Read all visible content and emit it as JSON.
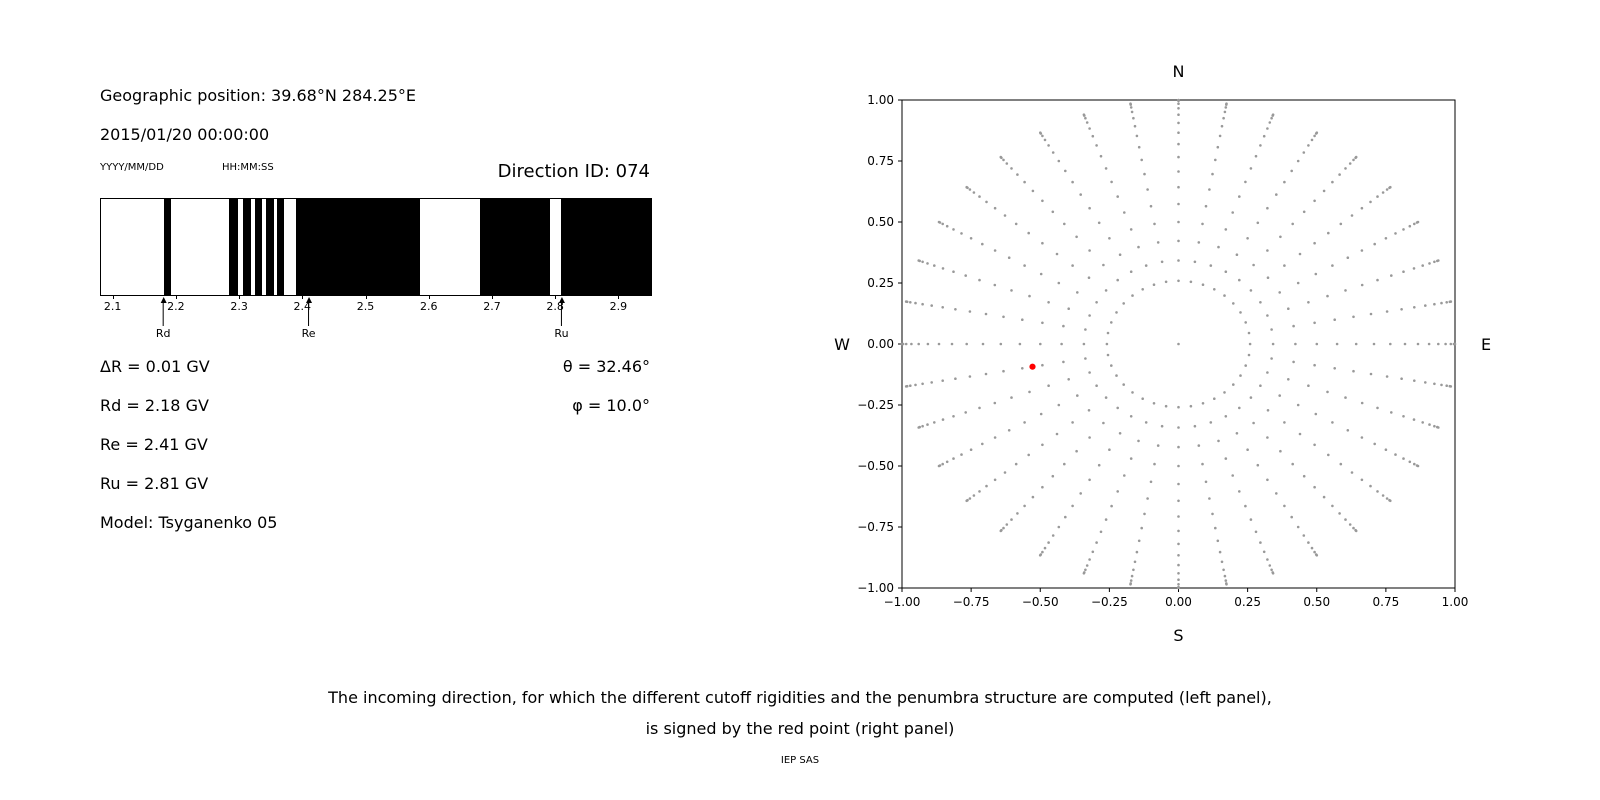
{
  "header": {
    "geo_position": "Geographic position: 39.68°N 284.25°E",
    "datetime": "2015/01/20 00:00:00",
    "date_format_label": "YYYY/MM/DD",
    "time_format_label": "HH:MM:SS",
    "direction_id": "Direction ID: 074"
  },
  "parameters": {
    "delta_r": "ΔR = 0.01 GV",
    "theta": "θ = 32.46°",
    "rd": "Rd = 2.18 GV",
    "phi": "φ = 10.0°",
    "re": "Re = 2.41 GV",
    "ru": "Ru = 2.81 GV",
    "model": "Model: Tsyganenko 05"
  },
  "caption": {
    "line1": "The incoming direction, for which the different cutoff rigidities and the penumbra structure are computed (left panel),",
    "line2": "is signed by the red point (right panel)",
    "credit": "IEP SAS"
  },
  "chart_data": [
    {
      "id": "penumbra-structure",
      "type": "bar",
      "description": "Penumbra structure barcode: black bands are allowed rigidity intervals, white gaps are forbidden",
      "xlim": [
        2.08,
        2.95
      ],
      "xticks": [
        2.1,
        2.2,
        2.3,
        2.4,
        2.5,
        2.6,
        2.7,
        2.8,
        2.9
      ],
      "tick_labels": [
        "2.1",
        "2.2",
        "2.3",
        "2.4",
        "2.5",
        "2.6",
        "2.7",
        "2.8",
        "2.9"
      ],
      "allowed_color": "#000000",
      "forbidden_color": "#ffffff",
      "allowed_bands_gv": [
        [
          2.18,
          2.19
        ],
        [
          2.282,
          2.297
        ],
        [
          2.304,
          2.317
        ],
        [
          2.323,
          2.335
        ],
        [
          2.341,
          2.353
        ],
        [
          2.359,
          2.369
        ],
        [
          2.388,
          2.585
        ],
        [
          2.68,
          2.79
        ],
        [
          2.807,
          2.95
        ]
      ],
      "markers": [
        {
          "label": "Rd",
          "value_gv": 2.18
        },
        {
          "label": "Re",
          "value_gv": 2.41
        },
        {
          "label": "Ru",
          "value_gv": 2.81
        }
      ]
    },
    {
      "id": "direction-map",
      "type": "scatter",
      "description": "Sky map of incoming directions; grid of gray dots at azimuth/zenith steps, red dot marks the computed direction",
      "xlim": [
        -1.0,
        1.0
      ],
      "ylim": [
        -1.0,
        1.0
      ],
      "xticks": [
        -1.0,
        -0.75,
        -0.5,
        -0.25,
        0.0,
        0.25,
        0.5,
        0.75,
        1.0
      ],
      "yticks": [
        1.0,
        0.75,
        0.5,
        0.25,
        0.0,
        -0.25,
        -0.5,
        -0.75,
        -1.0
      ],
      "compass_labels": {
        "top": "N",
        "bottom": "S",
        "left": "W",
        "right": "E"
      },
      "grid": {
        "azimuth_deg_start": 0,
        "azimuth_deg_step": 10,
        "azimuth_count": 36,
        "zenith_deg_start": 15,
        "zenith_deg_step": 5,
        "zenith_deg_stop": 90,
        "radius_formula": "sin(zenith)",
        "include_center_point": true,
        "dot_color": "#999999"
      },
      "red_point": {
        "x": -0.528,
        "y": -0.093,
        "theta_deg": 32.46,
        "phi_deg": 10.0,
        "color": "#ff0000"
      }
    }
  ]
}
